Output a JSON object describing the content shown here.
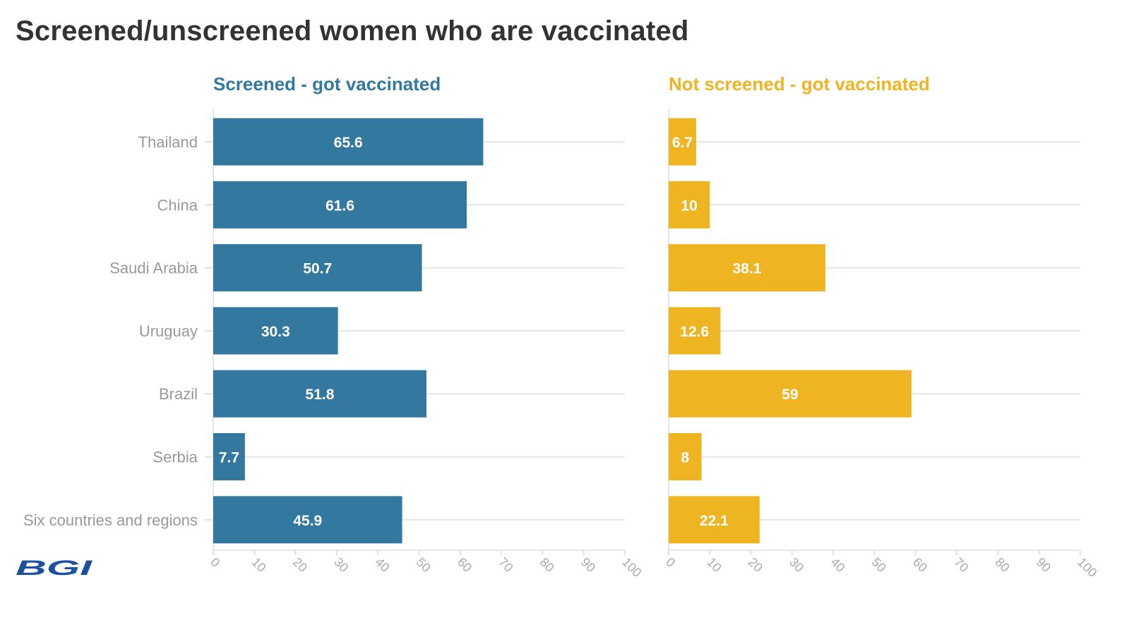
{
  "title": "Screened/unscreened women who are vaccinated",
  "logo_text": "BGI",
  "chart_data": [
    {
      "type": "bar",
      "orientation": "horizontal",
      "title": "Screened - got vaccinated",
      "color": "#33789F",
      "categories": [
        "Thailand",
        "China",
        "Saudi Arabia",
        "Uruguay",
        "Brazil",
        "Serbia",
        "Six countries and regions"
      ],
      "values": [
        65.6,
        61.6,
        50.7,
        30.3,
        51.8,
        7.7,
        45.9
      ],
      "xlim": [
        0,
        100
      ],
      "ticks": [
        0,
        10,
        20,
        30,
        40,
        50,
        60,
        70,
        80,
        90,
        100
      ],
      "grid": true
    },
    {
      "type": "bar",
      "orientation": "horizontal",
      "title": "Not screened - got vaccinated",
      "color": "#EEB422",
      "categories": [
        "Thailand",
        "China",
        "Saudi Arabia",
        "Uruguay",
        "Brazil",
        "Serbia",
        "Six countries and regions"
      ],
      "values": [
        6.7,
        10,
        38.1,
        12.6,
        59,
        8,
        22.1
      ],
      "xlim": [
        0,
        100
      ],
      "ticks": [
        0,
        10,
        20,
        30,
        40,
        50,
        60,
        70,
        80,
        90,
        100
      ],
      "grid": true
    }
  ]
}
